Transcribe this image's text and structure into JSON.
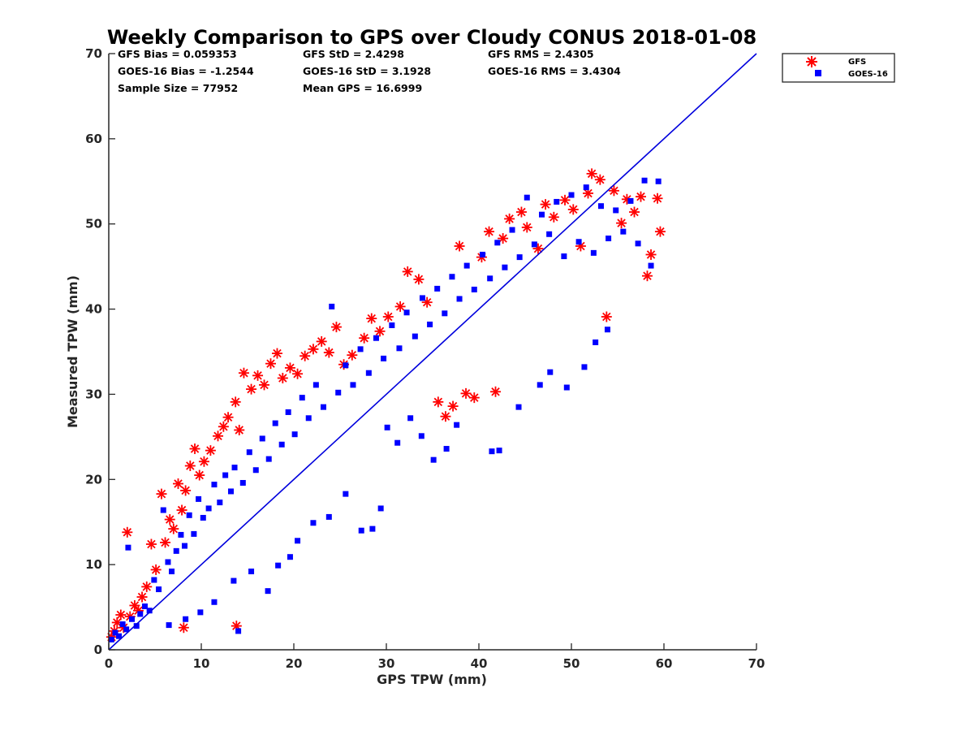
{
  "chart_data": {
    "type": "scatter",
    "title": "Weekly Comparison to GPS over Cloudy CONUS 2018-01-08",
    "xlabel": "GPS TPW (mm)",
    "ylabel": "Measured TPW (mm)",
    "xlim": [
      0,
      70
    ],
    "ylim": [
      0,
      70
    ],
    "xticks": [
      "0",
      "10",
      "20",
      "30",
      "40",
      "50",
      "60",
      "70"
    ],
    "yticks": [
      "0",
      "10",
      "20",
      "30",
      "40",
      "50",
      "60",
      "70"
    ],
    "grid": false,
    "legend_position": "outside-top-right",
    "stats": [
      "GFS Bias = 0.059353",
      "GFS StD = 2.4298",
      "GFS RMS = 2.4305",
      "GOES-16 Bias = -1.2544",
      "GOES-16 StD = 3.1928",
      "GOES-16 RMS = 3.4304",
      "Sample Size = 77952",
      "Mean GPS = 16.6999"
    ],
    "reference_line": {
      "color": "#0000dd",
      "points": [
        [
          0,
          0
        ],
        [
          70,
          70
        ]
      ]
    },
    "series": [
      {
        "name": "GFS",
        "marker": "asterisk",
        "color": "#ff0000",
        "points": [
          [
            0.3,
            1.5
          ],
          [
            0.6,
            2.2
          ],
          [
            0.9,
            3.2
          ],
          [
            1.3,
            4.1
          ],
          [
            1.6,
            2.6
          ],
          [
            2.0,
            13.8
          ],
          [
            2.3,
            3.9
          ],
          [
            2.8,
            5.2
          ],
          [
            3.2,
            4.6
          ],
          [
            3.6,
            6.2
          ],
          [
            4.1,
            7.4
          ],
          [
            4.6,
            12.4
          ],
          [
            5.1,
            9.4
          ],
          [
            5.7,
            18.3
          ],
          [
            6.1,
            12.6
          ],
          [
            6.6,
            15.3
          ],
          [
            7.0,
            14.2
          ],
          [
            7.5,
            19.5
          ],
          [
            7.9,
            16.4
          ],
          [
            8.3,
            18.7
          ],
          [
            8.8,
            21.6
          ],
          [
            9.3,
            23.6
          ],
          [
            9.8,
            20.5
          ],
          [
            10.3,
            22.1
          ],
          [
            11.0,
            23.4
          ],
          [
            11.8,
            25.1
          ],
          [
            12.4,
            26.2
          ],
          [
            12.9,
            27.3
          ],
          [
            13.7,
            29.1
          ],
          [
            14.1,
            25.8
          ],
          [
            14.6,
            32.5
          ],
          [
            15.4,
            30.6
          ],
          [
            16.1,
            32.2
          ],
          [
            16.8,
            31.1
          ],
          [
            17.5,
            33.6
          ],
          [
            18.2,
            34.8
          ],
          [
            18.8,
            31.9
          ],
          [
            19.6,
            33.1
          ],
          [
            20.4,
            32.4
          ],
          [
            21.2,
            34.5
          ],
          [
            22.1,
            35.3
          ],
          [
            23.0,
            36.2
          ],
          [
            23.8,
            34.9
          ],
          [
            24.6,
            37.9
          ],
          [
            25.4,
            33.5
          ],
          [
            26.3,
            34.6
          ],
          [
            27.6,
            36.6
          ],
          [
            28.4,
            38.9
          ],
          [
            29.3,
            37.4
          ],
          [
            30.2,
            39.1
          ],
          [
            31.5,
            40.3
          ],
          [
            32.3,
            44.4
          ],
          [
            33.5,
            43.5
          ],
          [
            34.4,
            40.8
          ],
          [
            35.6,
            29.1
          ],
          [
            36.4,
            27.4
          ],
          [
            37.2,
            28.6
          ],
          [
            37.9,
            47.4
          ],
          [
            38.6,
            30.1
          ],
          [
            39.5,
            29.6
          ],
          [
            40.3,
            46.1
          ],
          [
            41.1,
            49.1
          ],
          [
            41.8,
            30.3
          ],
          [
            42.6,
            48.3
          ],
          [
            43.3,
            50.6
          ],
          [
            44.6,
            51.4
          ],
          [
            45.2,
            49.6
          ],
          [
            46.4,
            47.1
          ],
          [
            47.2,
            52.3
          ],
          [
            48.1,
            50.8
          ],
          [
            49.3,
            52.8
          ],
          [
            50.2,
            51.7
          ],
          [
            51.0,
            47.4
          ],
          [
            51.8,
            53.6
          ],
          [
            52.2,
            55.9
          ],
          [
            53.1,
            55.2
          ],
          [
            53.8,
            39.1
          ],
          [
            54.6,
            53.9
          ],
          [
            55.4,
            50.1
          ],
          [
            56.0,
            52.9
          ],
          [
            56.8,
            51.4
          ],
          [
            57.5,
            53.2
          ],
          [
            58.2,
            43.9
          ],
          [
            58.6,
            46.4
          ],
          [
            59.3,
            53.0
          ],
          [
            59.6,
            49.1
          ],
          [
            13.8,
            2.8
          ],
          [
            8.1,
            2.6
          ]
        ]
      },
      {
        "name": "GOES-16",
        "marker": "square",
        "color": "#0000ff",
        "points": [
          [
            0.3,
            1.2
          ],
          [
            0.7,
            2.0
          ],
          [
            1.1,
            1.6
          ],
          [
            1.5,
            3.0
          ],
          [
            1.9,
            2.4
          ],
          [
            2.1,
            12.0
          ],
          [
            2.5,
            3.6
          ],
          [
            3.0,
            2.8
          ],
          [
            3.4,
            4.2
          ],
          [
            3.9,
            5.1
          ],
          [
            4.4,
            4.6
          ],
          [
            4.9,
            8.2
          ],
          [
            5.4,
            7.1
          ],
          [
            5.9,
            16.4
          ],
          [
            6.4,
            10.3
          ],
          [
            6.8,
            9.2
          ],
          [
            7.3,
            11.6
          ],
          [
            7.8,
            13.5
          ],
          [
            8.2,
            12.2
          ],
          [
            8.7,
            15.8
          ],
          [
            9.2,
            13.6
          ],
          [
            9.7,
            17.7
          ],
          [
            10.2,
            15.5
          ],
          [
            10.8,
            16.6
          ],
          [
            11.4,
            19.4
          ],
          [
            12.0,
            17.3
          ],
          [
            12.6,
            20.5
          ],
          [
            13.2,
            18.6
          ],
          [
            13.6,
            21.4
          ],
          [
            14.0,
            2.2
          ],
          [
            14.5,
            19.6
          ],
          [
            15.2,
            23.2
          ],
          [
            15.9,
            21.1
          ],
          [
            16.6,
            24.8
          ],
          [
            17.3,
            22.4
          ],
          [
            18.0,
            26.6
          ],
          [
            18.7,
            24.1
          ],
          [
            19.4,
            27.9
          ],
          [
            20.1,
            25.3
          ],
          [
            20.9,
            29.6
          ],
          [
            21.6,
            27.2
          ],
          [
            22.4,
            31.1
          ],
          [
            23.2,
            28.5
          ],
          [
            24.1,
            40.3
          ],
          [
            24.8,
            30.2
          ],
          [
            25.6,
            33.4
          ],
          [
            26.4,
            31.1
          ],
          [
            27.2,
            35.3
          ],
          [
            28.1,
            32.5
          ],
          [
            28.9,
            36.6
          ],
          [
            29.7,
            34.2
          ],
          [
            30.6,
            38.1
          ],
          [
            31.4,
            35.4
          ],
          [
            32.2,
            39.6
          ],
          [
            33.1,
            36.8
          ],
          [
            33.9,
            41.3
          ],
          [
            34.7,
            38.2
          ],
          [
            35.5,
            42.4
          ],
          [
            36.3,
            39.5
          ],
          [
            37.1,
            43.8
          ],
          [
            37.9,
            41.2
          ],
          [
            38.7,
            45.1
          ],
          [
            39.5,
            42.3
          ],
          [
            40.4,
            46.4
          ],
          [
            41.2,
            43.6
          ],
          [
            42.0,
            47.8
          ],
          [
            42.8,
            44.9
          ],
          [
            43.6,
            49.3
          ],
          [
            44.4,
            46.1
          ],
          [
            45.2,
            53.1
          ],
          [
            46.0,
            47.6
          ],
          [
            46.8,
            51.1
          ],
          [
            47.6,
            48.8
          ],
          [
            48.4,
            52.6
          ],
          [
            49.2,
            46.2
          ],
          [
            50.0,
            53.4
          ],
          [
            50.8,
            47.9
          ],
          [
            51.6,
            54.3
          ],
          [
            52.4,
            46.6
          ],
          [
            53.2,
            52.1
          ],
          [
            54.0,
            48.3
          ],
          [
            54.8,
            51.6
          ],
          [
            55.6,
            49.1
          ],
          [
            56.4,
            52.7
          ],
          [
            57.2,
            47.7
          ],
          [
            57.9,
            55.1
          ],
          [
            58.6,
            45.1
          ],
          [
            59.4,
            55.0
          ],
          [
            30.1,
            26.1
          ],
          [
            31.2,
            24.3
          ],
          [
            32.6,
            27.2
          ],
          [
            33.8,
            25.1
          ],
          [
            35.1,
            22.3
          ],
          [
            36.5,
            23.6
          ],
          [
            37.6,
            26.4
          ],
          [
            41.4,
            23.3
          ],
          [
            42.2,
            23.4
          ],
          [
            44.3,
            28.5
          ],
          [
            46.6,
            31.1
          ],
          [
            47.7,
            32.6
          ],
          [
            49.5,
            30.8
          ],
          [
            51.4,
            33.2
          ],
          [
            52.6,
            36.1
          ],
          [
            53.9,
            37.6
          ],
          [
            22.1,
            14.9
          ],
          [
            23.8,
            15.6
          ],
          [
            25.6,
            18.3
          ],
          [
            27.3,
            14.0
          ],
          [
            28.5,
            14.2
          ],
          [
            29.4,
            16.6
          ],
          [
            18.3,
            9.9
          ],
          [
            19.6,
            10.9
          ],
          [
            20.4,
            12.8
          ],
          [
            17.2,
            6.9
          ],
          [
            15.4,
            9.2
          ],
          [
            13.5,
            8.1
          ],
          [
            11.4,
            5.6
          ],
          [
            9.9,
            4.4
          ],
          [
            8.3,
            3.6
          ],
          [
            6.5,
            2.9
          ]
        ]
      }
    ]
  }
}
